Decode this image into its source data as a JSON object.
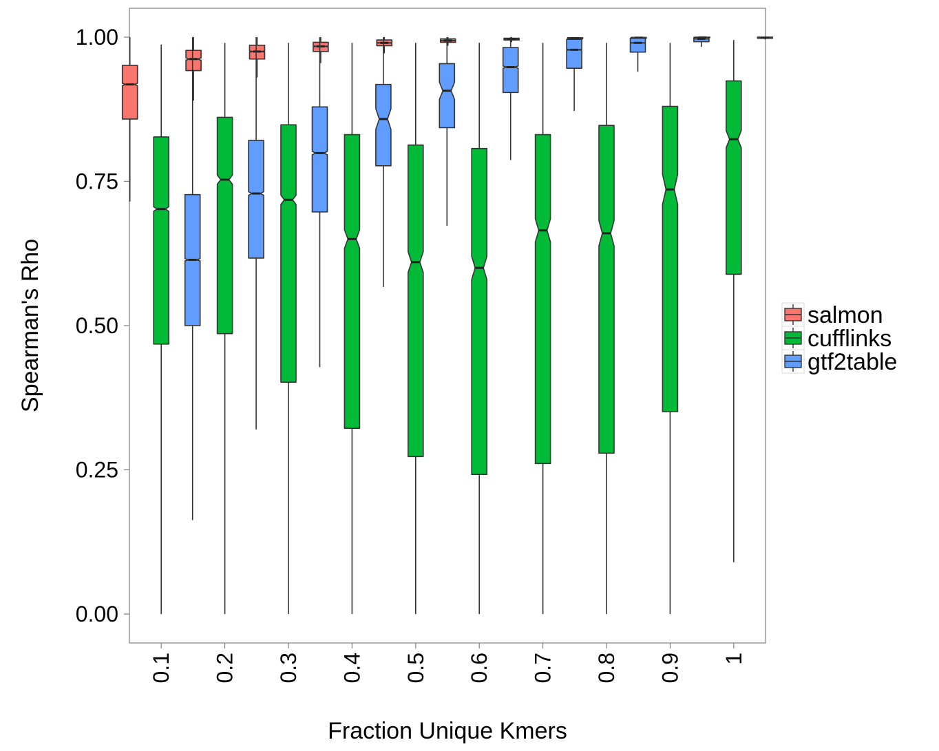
{
  "chart_data": {
    "type": "boxplot",
    "notched": true,
    "xlabel": "Fraction Unique Kmers",
    "ylabel": "Spearman's Rho",
    "ylim": [
      -0.05,
      1.05
    ],
    "yticks": [
      "0.00",
      "0.25",
      "0.50",
      "0.75",
      "1.00"
    ],
    "ytick_values": [
      0,
      0.25,
      0.5,
      0.75,
      1.0
    ],
    "categories": [
      "0.1",
      "0.2",
      "0.3",
      "0.4",
      "0.5",
      "0.6",
      "0.7",
      "0.8",
      "0.9",
      "1"
    ],
    "grid": false,
    "legend_position": "right",
    "series": [
      {
        "name": "salmon",
        "color": "#F8766D",
        "boxes": [
          {
            "whisker_low": 0.715,
            "q1": 0.858,
            "median": 0.918,
            "q3": 0.951,
            "whisker_high": 1.0,
            "notch_low": 0.916,
            "notch_high": 0.92
          },
          {
            "whisker_low": 0.89,
            "q1": 0.942,
            "median": 0.962,
            "q3": 0.977,
            "whisker_high": 1.0,
            "notch_low": 0.96,
            "notch_high": 0.964
          },
          {
            "whisker_low": 0.93,
            "q1": 0.962,
            "median": 0.975,
            "q3": 0.986,
            "whisker_high": 1.0,
            "notch_low": 0.974,
            "notch_high": 0.976
          },
          {
            "whisker_low": 0.955,
            "q1": 0.975,
            "median": 0.984,
            "q3": 0.991,
            "whisker_high": 1.0,
            "notch_low": 0.983,
            "notch_high": 0.985
          },
          {
            "whisker_low": 0.972,
            "q1": 0.985,
            "median": 0.99,
            "q3": 0.995,
            "whisker_high": 1.0,
            "notch_low": 0.9895,
            "notch_high": 0.9905
          },
          {
            "whisker_low": 0.985,
            "q1": 0.991,
            "median": 0.994,
            "q3": 0.997,
            "whisker_high": 1.0,
            "notch_low": 0.9937,
            "notch_high": 0.9943
          },
          {
            "whisker_low": 0.991,
            "q1": 0.995,
            "median": 0.9965,
            "q3": 0.998,
            "whisker_high": 1.0,
            "notch_low": 0.9963,
            "notch_high": 0.9967
          },
          {
            "whisker_low": 0.995,
            "q1": 0.997,
            "median": 0.998,
            "q3": 0.999,
            "whisker_high": 1.0,
            "notch_low": 0.9978,
            "notch_high": 0.9982
          },
          {
            "whisker_low": 0.997,
            "q1": 0.998,
            "median": 0.999,
            "q3": 0.9995,
            "whisker_high": 1.0,
            "notch_low": 0.9988,
            "notch_high": 0.9992
          },
          {
            "whisker_low": 0.998,
            "q1": 0.999,
            "median": 0.9995,
            "q3": 1.0,
            "whisker_high": 1.0,
            "notch_low": 0.9993,
            "notch_high": 0.9997
          }
        ]
      },
      {
        "name": "cufflinks",
        "color": "#00BA38",
        "boxes": [
          {
            "whisker_low": 0.0,
            "q1": 0.468,
            "median": 0.702,
            "q3": 0.827,
            "whisker_high": 0.987,
            "notch_low": 0.698,
            "notch_high": 0.706
          },
          {
            "whisker_low": 0.0,
            "q1": 0.486,
            "median": 0.753,
            "q3": 0.861,
            "whisker_high": 0.99,
            "notch_low": 0.745,
            "notch_high": 0.761
          },
          {
            "whisker_low": 0.0,
            "q1": 0.402,
            "median": 0.718,
            "q3": 0.848,
            "whisker_high": 0.99,
            "notch_low": 0.71,
            "notch_high": 0.726
          },
          {
            "whisker_low": 0.0,
            "q1": 0.322,
            "median": 0.65,
            "q3": 0.831,
            "whisker_high": 0.99,
            "notch_low": 0.634,
            "notch_high": 0.666
          },
          {
            "whisker_low": 0.0,
            "q1": 0.273,
            "median": 0.61,
            "q3": 0.813,
            "whisker_high": 0.99,
            "notch_low": 0.592,
            "notch_high": 0.628
          },
          {
            "whisker_low": 0.0,
            "q1": 0.242,
            "median": 0.6,
            "q3": 0.807,
            "whisker_high": 0.99,
            "notch_low": 0.58,
            "notch_high": 0.62
          },
          {
            "whisker_low": 0.0,
            "q1": 0.261,
            "median": 0.665,
            "q3": 0.831,
            "whisker_high": 0.99,
            "notch_low": 0.645,
            "notch_high": 0.685
          },
          {
            "whisker_low": 0.0,
            "q1": 0.279,
            "median": 0.66,
            "q3": 0.847,
            "whisker_high": 0.99,
            "notch_low": 0.638,
            "notch_high": 0.682
          },
          {
            "whisker_low": 0.0,
            "q1": 0.351,
            "median": 0.736,
            "q3": 0.88,
            "whisker_high": 0.99,
            "notch_low": 0.71,
            "notch_high": 0.762
          },
          {
            "whisker_low": 0.09,
            "q1": 0.589,
            "median": 0.823,
            "q3": 0.924,
            "whisker_high": 0.995,
            "notch_low": 0.808,
            "notch_high": 0.838
          }
        ]
      },
      {
        "name": "gtf2table",
        "color": "#619CFF",
        "boxes": [
          {
            "whisker_low": 0.163,
            "q1": 0.5,
            "median": 0.614,
            "q3": 0.727,
            "whisker_high": 1.0,
            "notch_low": 0.612,
            "notch_high": 0.616
          },
          {
            "whisker_low": 0.32,
            "q1": 0.617,
            "median": 0.729,
            "q3": 0.821,
            "whisker_high": 1.0,
            "notch_low": 0.726,
            "notch_high": 0.732
          },
          {
            "whisker_low": 0.428,
            "q1": 0.697,
            "median": 0.799,
            "q3": 0.879,
            "whisker_high": 1.0,
            "notch_low": 0.796,
            "notch_high": 0.802
          },
          {
            "whisker_low": 0.567,
            "q1": 0.777,
            "median": 0.858,
            "q3": 0.918,
            "whisker_high": 1.0,
            "notch_low": 0.84,
            "notch_high": 0.876
          },
          {
            "whisker_low": 0.673,
            "q1": 0.843,
            "median": 0.907,
            "q3": 0.954,
            "whisker_high": 1.0,
            "notch_low": 0.892,
            "notch_high": 0.922
          },
          {
            "whisker_low": 0.787,
            "q1": 0.904,
            "median": 0.948,
            "q3": 0.982,
            "whisker_high": 1.0,
            "notch_low": 0.946,
            "notch_high": 0.95
          },
          {
            "whisker_low": 0.872,
            "q1": 0.946,
            "median": 0.978,
            "q3": 0.996,
            "whisker_high": 1.0,
            "notch_low": 0.977,
            "notch_high": 0.979
          },
          {
            "whisker_low": 0.94,
            "q1": 0.974,
            "median": 0.99,
            "q3": 0.998,
            "whisker_high": 1.0,
            "notch_low": 0.9895,
            "notch_high": 0.9905
          },
          {
            "whisker_low": 0.983,
            "q1": 0.992,
            "median": 0.997,
            "q3": 0.9995,
            "whisker_high": 1.0,
            "notch_low": 0.9967,
            "notch_high": 0.9973
          },
          {
            "whisker_low": 0.996,
            "q1": 0.998,
            "median": 0.999,
            "q3": 1.0,
            "whisker_high": 1.0,
            "notch_low": 0.9988,
            "notch_high": 0.9992
          }
        ]
      }
    ]
  }
}
